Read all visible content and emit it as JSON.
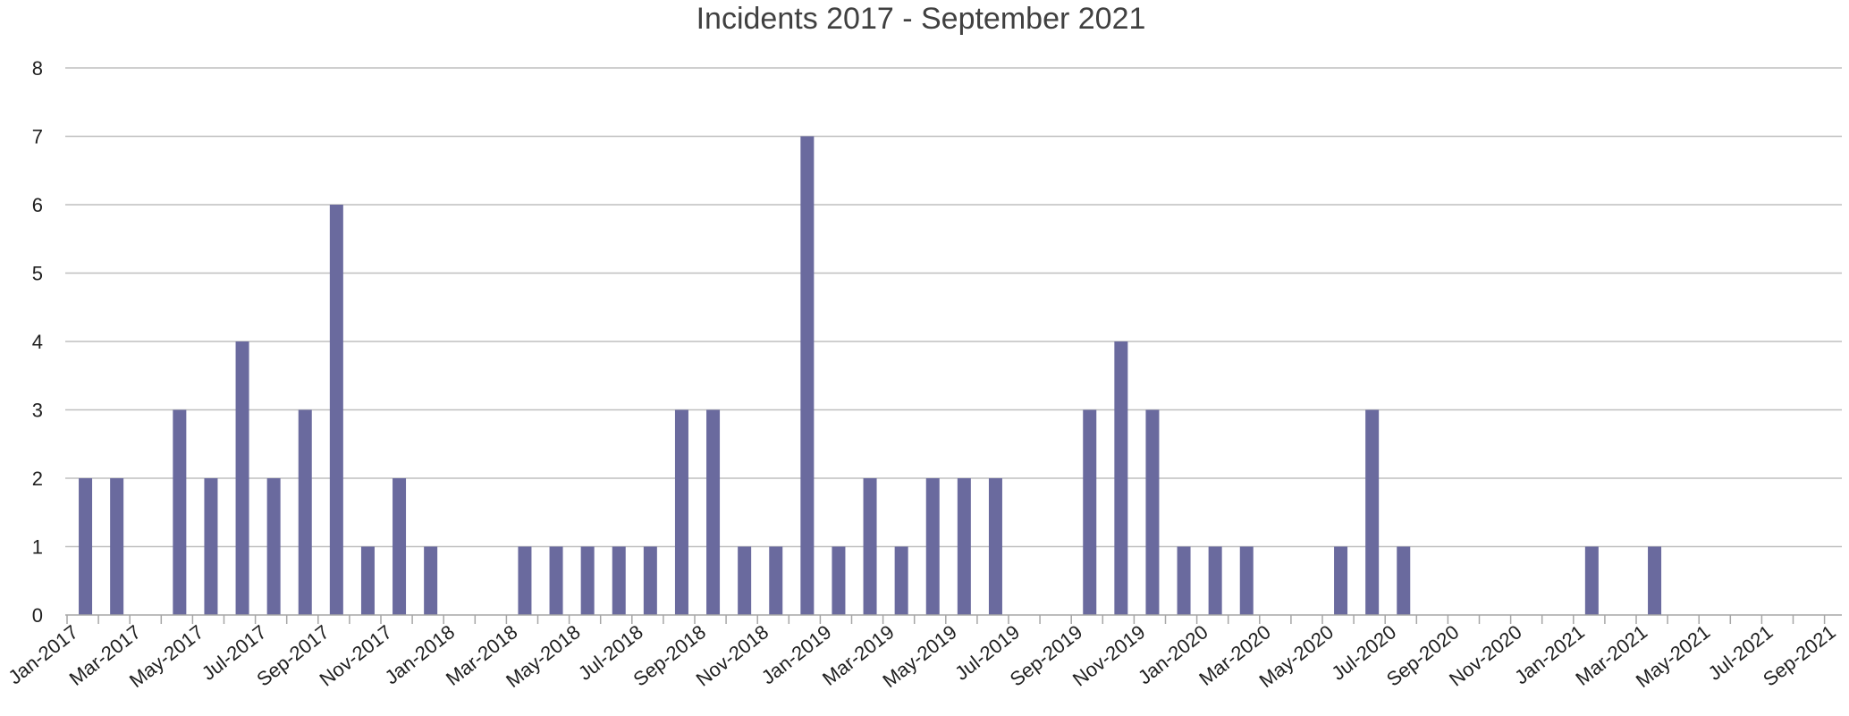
{
  "chart_data": {
    "type": "bar",
    "title": "Incidents 2017 - September 2021",
    "xlabel": "",
    "ylabel": "",
    "ylim": [
      0,
      8
    ],
    "yticks": [
      0,
      1,
      2,
      3,
      4,
      5,
      6,
      7,
      8
    ],
    "grid": true,
    "legend": "none",
    "bar_color": "#6a6a9e",
    "categories": [
      "Jan-2017",
      "Feb-2017",
      "Mar-2017",
      "Apr-2017",
      "May-2017",
      "Jun-2017",
      "Jul-2017",
      "Aug-2017",
      "Sep-2017",
      "Oct-2017",
      "Nov-2017",
      "Dec-2017",
      "Jan-2018",
      "Feb-2018",
      "Mar-2018",
      "Apr-2018",
      "May-2018",
      "Jun-2018",
      "Jul-2018",
      "Aug-2018",
      "Sep-2018",
      "Oct-2018",
      "Nov-2018",
      "Dec-2018",
      "Jan-2019",
      "Feb-2019",
      "Mar-2019",
      "Apr-2019",
      "May-2019",
      "Jun-2019",
      "Jul-2019",
      "Aug-2019",
      "Sep-2019",
      "Oct-2019",
      "Nov-2019",
      "Dec-2019",
      "Jan-2020",
      "Feb-2020",
      "Mar-2020",
      "Apr-2020",
      "May-2020",
      "Jun-2020",
      "Jul-2020",
      "Aug-2020",
      "Sep-2020",
      "Oct-2020",
      "Nov-2020",
      "Dec-2020",
      "Jan-2021",
      "Feb-2021",
      "Mar-2021",
      "Apr-2021",
      "May-2021",
      "Jun-2021",
      "Jul-2021",
      "Aug-2021",
      "Sep-2021"
    ],
    "tick_labels": [
      "Jan-2017",
      "Mar-2017",
      "May-2017",
      "Jul-2017",
      "Sep-2017",
      "Nov-2017",
      "Jan-2018",
      "Mar-2018",
      "May-2018",
      "Jul-2018",
      "Sep-2018",
      "Nov-2018",
      "Jan-2019",
      "Mar-2019",
      "May-2019",
      "Jul-2019",
      "Sep-2019",
      "Nov-2019",
      "Jan-2020",
      "Mar-2020",
      "May-2020",
      "Jul-2020",
      "Sep-2020",
      "Nov-2020",
      "Jan-2021",
      "Mar-2021",
      "May-2021",
      "Jul-2021",
      "Sep-2021"
    ],
    "values": [
      2,
      2,
      0,
      3,
      2,
      4,
      2,
      3,
      6,
      1,
      2,
      1,
      0,
      0,
      1,
      1,
      1,
      1,
      1,
      3,
      3,
      1,
      1,
      7,
      1,
      2,
      1,
      2,
      2,
      2,
      0,
      0,
      3,
      4,
      3,
      1,
      1,
      1,
      0,
      0,
      1,
      3,
      1,
      0,
      0,
      0,
      0,
      0,
      1,
      0,
      1,
      0,
      0,
      0,
      0,
      0,
      0
    ]
  }
}
